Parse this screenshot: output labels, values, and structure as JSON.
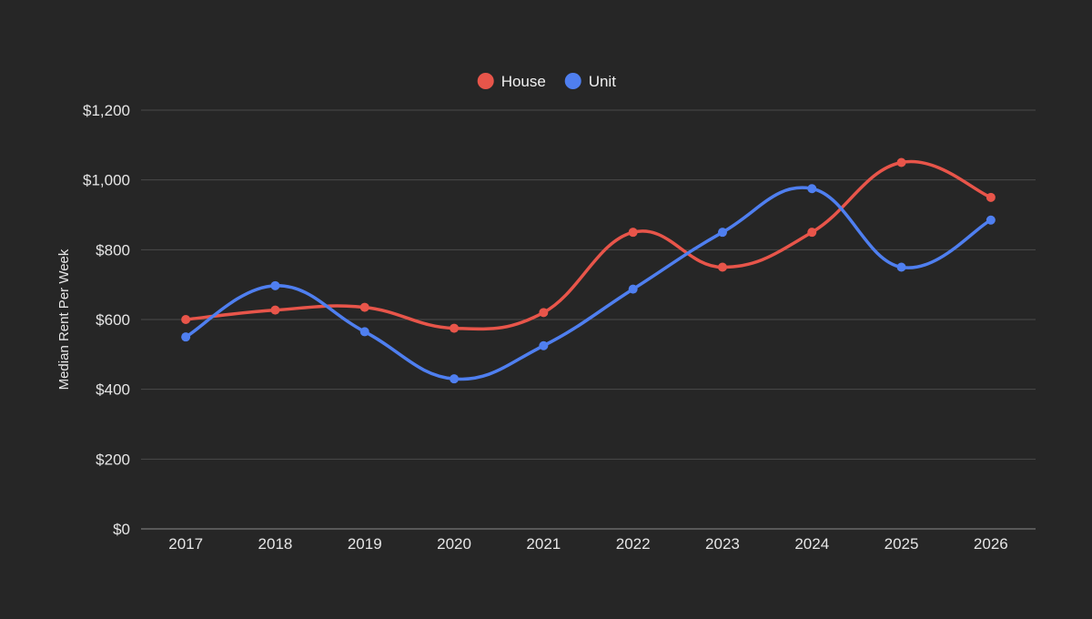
{
  "colors": {
    "background": "#262626",
    "house": "#e8554a",
    "unit": "#4f7ff0",
    "grid": "#4a4a4a",
    "text": "#e6e6e6"
  },
  "chart_data": {
    "type": "line",
    "title": "",
    "xlabel": "",
    "ylabel": "Median Rent Per Week",
    "categories": [
      "2017",
      "2018",
      "2019",
      "2020",
      "2021",
      "2022",
      "2023",
      "2024",
      "2025",
      "2026"
    ],
    "series": [
      {
        "name": "House",
        "color": "#e8554a",
        "values": [
          600,
          627,
          635,
          575,
          620,
          850,
          750,
          850,
          1050,
          950
        ]
      },
      {
        "name": "Unit",
        "color": "#4f7ff0",
        "values": [
          550,
          697,
          565,
          430,
          525,
          687,
          850,
          975,
          750,
          885
        ]
      }
    ],
    "ylim": [
      0,
      1200
    ],
    "yticks": [
      0,
      200,
      400,
      600,
      800,
      1000,
      1200
    ],
    "ytick_labels": [
      "$0",
      "$200",
      "$400",
      "$600",
      "$800",
      "$1,000",
      "$1,200"
    ],
    "grid": true,
    "legend_position": "top-center",
    "smooth": true
  }
}
